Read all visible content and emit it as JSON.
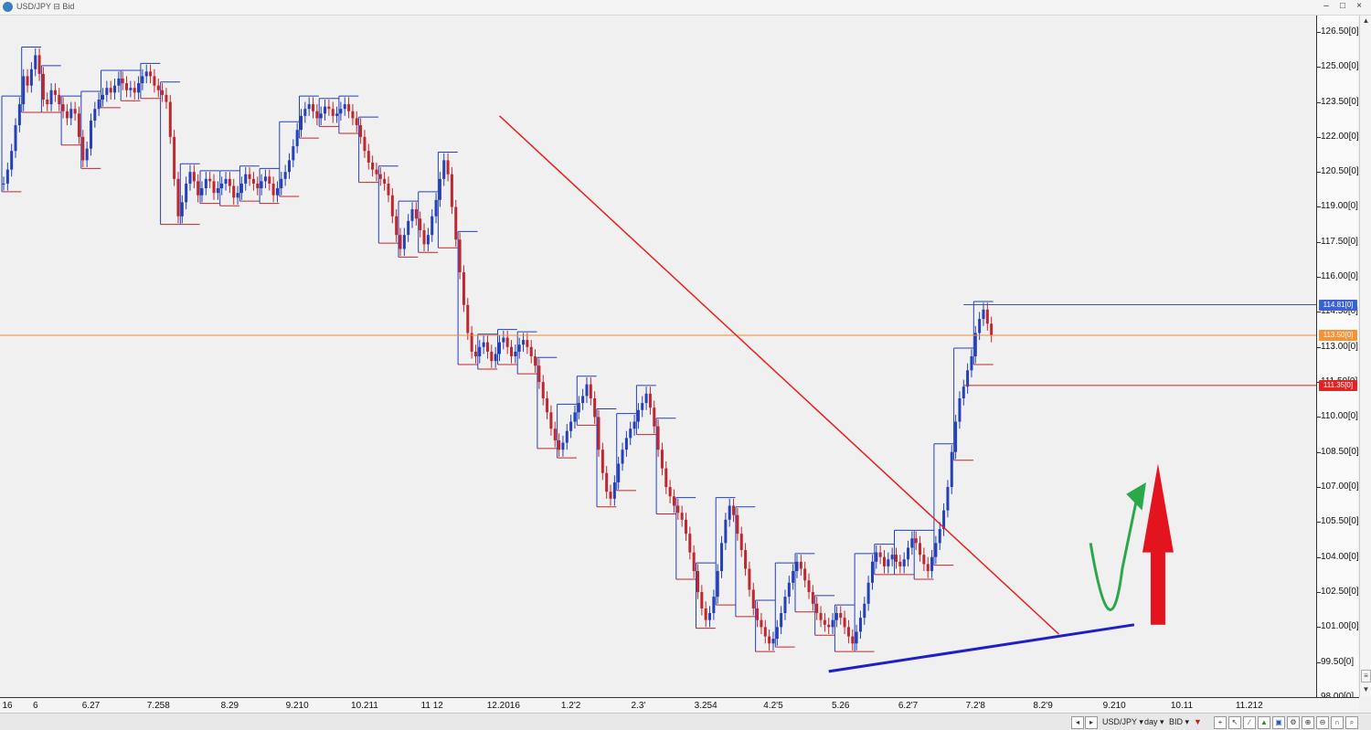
{
  "window": {
    "title": "USD/JPY ⊟ Bid",
    "controls": [
      "–",
      "□",
      "×"
    ]
  },
  "colors": {
    "bull": "#2340b8",
    "bear": "#c0262d",
    "trend_red": "#e51f1f",
    "trend_blue": "#1f1fc8",
    "arrow_green": "#2aa84a",
    "arrow_red": "#e3141e",
    "price_line": "#f08a30",
    "high_line": "#2f55c8",
    "low_line": "#c0262d"
  },
  "badges": {
    "high": "114.81[0]",
    "current": "113.50[0]",
    "low": "111.35[0]"
  },
  "status": {
    "symbol": "USD/JPY",
    "interval": "day",
    "side": "BID"
  },
  "chart_data": {
    "type": "candlestick",
    "symbol": "USD/JPY",
    "ylim": [
      98.0,
      127.2
    ],
    "y_ticks": [
      "126.50[0]",
      "125.00[0]",
      "123.50[0]",
      "122.00[0]",
      "120.50[0]",
      "119.00[0]",
      "117.50[0]",
      "116.00[0]",
      "114.50[0]",
      "113.00[0]",
      "111.50[0]",
      "110.00[0]",
      "108.50[0]",
      "107.00[0]",
      "105.50[0]",
      "104.00[0]",
      "102.50[0]",
      "101.00[0]",
      "99.50[0]",
      "98.00[0]"
    ],
    "y_tick_values": [
      126.5,
      125.0,
      123.5,
      122.0,
      120.5,
      119.0,
      117.5,
      116.0,
      114.5,
      113.0,
      111.5,
      110.0,
      108.5,
      107.0,
      105.5,
      104.0,
      102.5,
      101.0,
      99.5,
      98.0
    ],
    "x_ticks": [
      "16",
      "6",
      "6.27",
      "7.258",
      "8.29",
      "9.210",
      "10.211",
      "11 12",
      "12.2016",
      "1.2'2",
      "2.3'",
      "3.254",
      "4.2'5",
      "5.26",
      "6.2'7",
      "7.2'8",
      "8.2'9",
      "9.210",
      "10.11",
      "11.212"
    ],
    "x_tick_index": [
      0,
      8,
      22,
      39,
      57,
      74,
      91,
      108,
      126,
      143,
      160,
      177,
      194,
      211,
      228,
      245,
      262,
      280,
      297,
      314
    ],
    "current_price": 113.5,
    "range_high": 114.81,
    "range_low": 111.35,
    "closes": [
      120.0,
      120.6,
      121.4,
      122.5,
      123.4,
      124.6,
      124.2,
      124.9,
      125.5,
      124.7,
      123.6,
      123.4,
      124.0,
      123.8,
      123.4,
      123.1,
      122.8,
      123.2,
      123.0,
      122.0,
      121.0,
      121.5,
      122.7,
      123.2,
      123.6,
      123.8,
      124.1,
      123.9,
      124.2,
      124.5,
      124.3,
      124.0,
      124.1,
      123.9,
      124.3,
      124.6,
      124.8,
      124.6,
      124.2,
      124.0,
      123.8,
      123.5,
      122.0,
      120.2,
      118.6,
      119.2,
      120.0,
      120.5,
      120.1,
      119.5,
      119.8,
      120.2,
      120.1,
      119.6,
      119.8,
      120.0,
      120.2,
      119.9,
      119.4,
      119.6,
      120.0,
      120.4,
      120.2,
      120.0,
      119.8,
      120.1,
      120.3,
      120.0,
      119.5,
      119.8,
      120.2,
      120.5,
      121.0,
      121.6,
      122.3,
      122.9,
      123.2,
      123.4,
      123.1,
      122.8,
      123.0,
      123.3,
      123.2,
      122.9,
      123.0,
      123.2,
      123.4,
      123.1,
      122.8,
      122.5,
      122.0,
      121.4,
      120.9,
      120.6,
      120.4,
      120.2,
      120.0,
      119.5,
      118.6,
      117.8,
      117.2,
      117.8,
      118.4,
      118.9,
      118.5,
      118.0,
      117.4,
      117.8,
      118.6,
      119.3,
      120.2,
      121.0,
      120.4,
      119.0,
      117.6,
      116.2,
      114.8,
      113.6,
      112.8,
      112.6,
      113.0,
      113.2,
      112.8,
      112.4,
      112.7,
      113.2,
      113.4,
      113.0,
      112.6,
      112.8,
      113.1,
      113.3,
      113.0,
      112.6,
      112.2,
      111.5,
      110.8,
      110.2,
      109.5,
      109.0,
      108.6,
      108.9,
      109.4,
      109.8,
      110.2,
      110.6,
      110.9,
      111.4,
      110.8,
      110.0,
      108.6,
      107.6,
      106.8,
      106.5,
      107.2,
      108.0,
      108.6,
      109.1,
      109.5,
      109.8,
      110.3,
      110.6,
      111.0,
      110.4,
      109.6,
      108.6,
      107.8,
      107.0,
      106.6,
      106.2,
      105.9,
      105.6,
      105.0,
      104.2,
      103.4,
      102.5,
      101.8,
      101.3,
      101.6,
      102.3,
      103.4,
      104.6,
      105.6,
      106.2,
      105.8,
      105.0,
      104.3,
      103.5,
      102.6,
      101.8,
      101.3,
      101.0,
      100.6,
      100.3,
      100.5,
      101.0,
      101.6,
      102.3,
      102.9,
      103.4,
      103.8,
      103.5,
      103.0,
      102.5,
      102.0,
      101.6,
      101.3,
      101.1,
      101.0,
      101.3,
      101.6,
      101.4,
      101.0,
      100.6,
      100.3,
      100.8,
      101.4,
      102.0,
      102.9,
      103.8,
      104.2,
      104.0,
      103.6,
      103.9,
      104.1,
      103.8,
      103.6,
      103.9,
      104.4,
      104.8,
      104.6,
      104.1,
      103.7,
      103.4,
      104.0,
      104.6,
      105.2,
      106.0,
      107.0,
      108.5,
      109.8,
      110.8,
      111.3,
      112.0,
      112.6,
      113.6,
      114.2,
      114.6,
      114.0,
      113.5
    ]
  }
}
